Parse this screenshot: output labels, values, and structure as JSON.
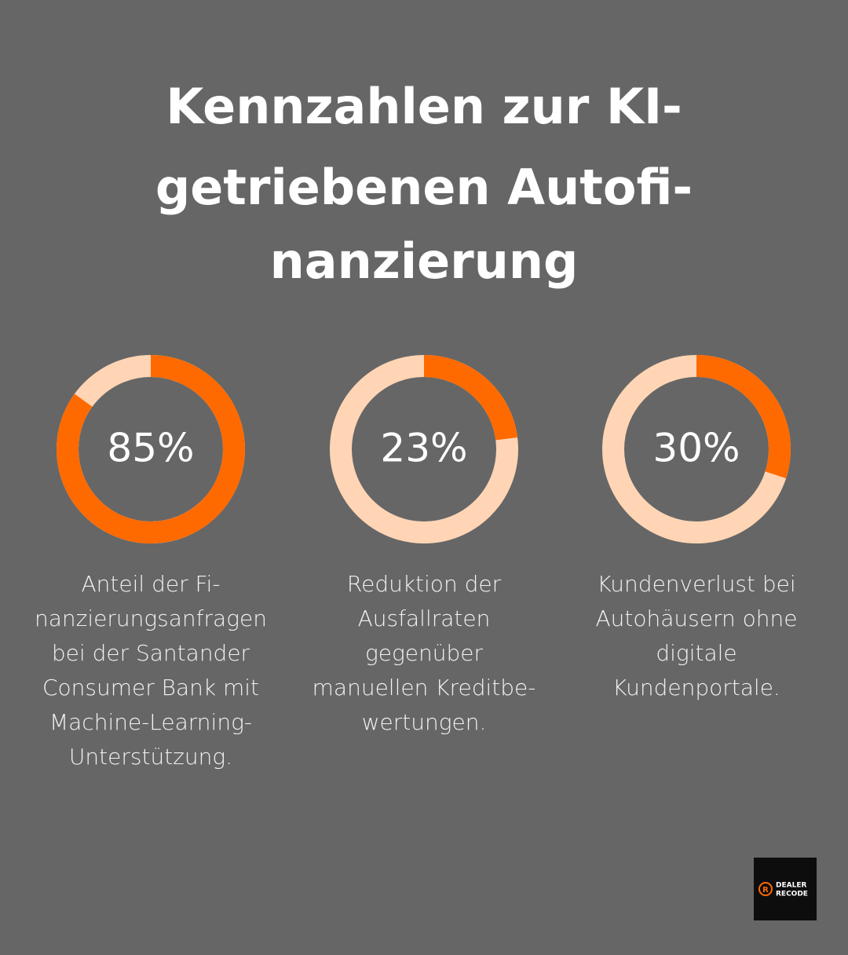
{
  "title_lines": [
    "Kennzahlen zur KI-",
    "getriebenen Autofi-",
    "nanzierung"
  ],
  "chart_data": [
    {
      "type": "donut",
      "values": [
        85
      ],
      "value_labels": [
        "85%"
      ],
      "color": "#ff6a00",
      "track_color": "#ffd5b5",
      "caption_lines": [
        "Anteil der Fi-",
        "nanzierungsanfragen",
        "bei der Santander",
        "Consumer Bank mit",
        "Machine-Learning-",
        "Unterstützung."
      ]
    },
    {
      "type": "donut",
      "values": [
        23
      ],
      "value_labels": [
        "23%"
      ],
      "color": "#ff6a00",
      "track_color": "#ffd5b5",
      "caption_lines": [
        "Reduktion der",
        "Ausfallraten",
        "gegenüber",
        "manuellen Kreditbe-",
        "wertungen."
      ]
    },
    {
      "type": "donut",
      "values": [
        30
      ],
      "value_labels": [
        "30%"
      ],
      "color": "#ff6a00",
      "track_color": "#ffd5b5",
      "caption_lines": [
        "Kundenverlust bei",
        "Autohäusern ohne",
        "digitale",
        "Kundenportale."
      ]
    }
  ],
  "logo": {
    "icon": "R",
    "lines": [
      "DEALER",
      "RECODE"
    ]
  }
}
